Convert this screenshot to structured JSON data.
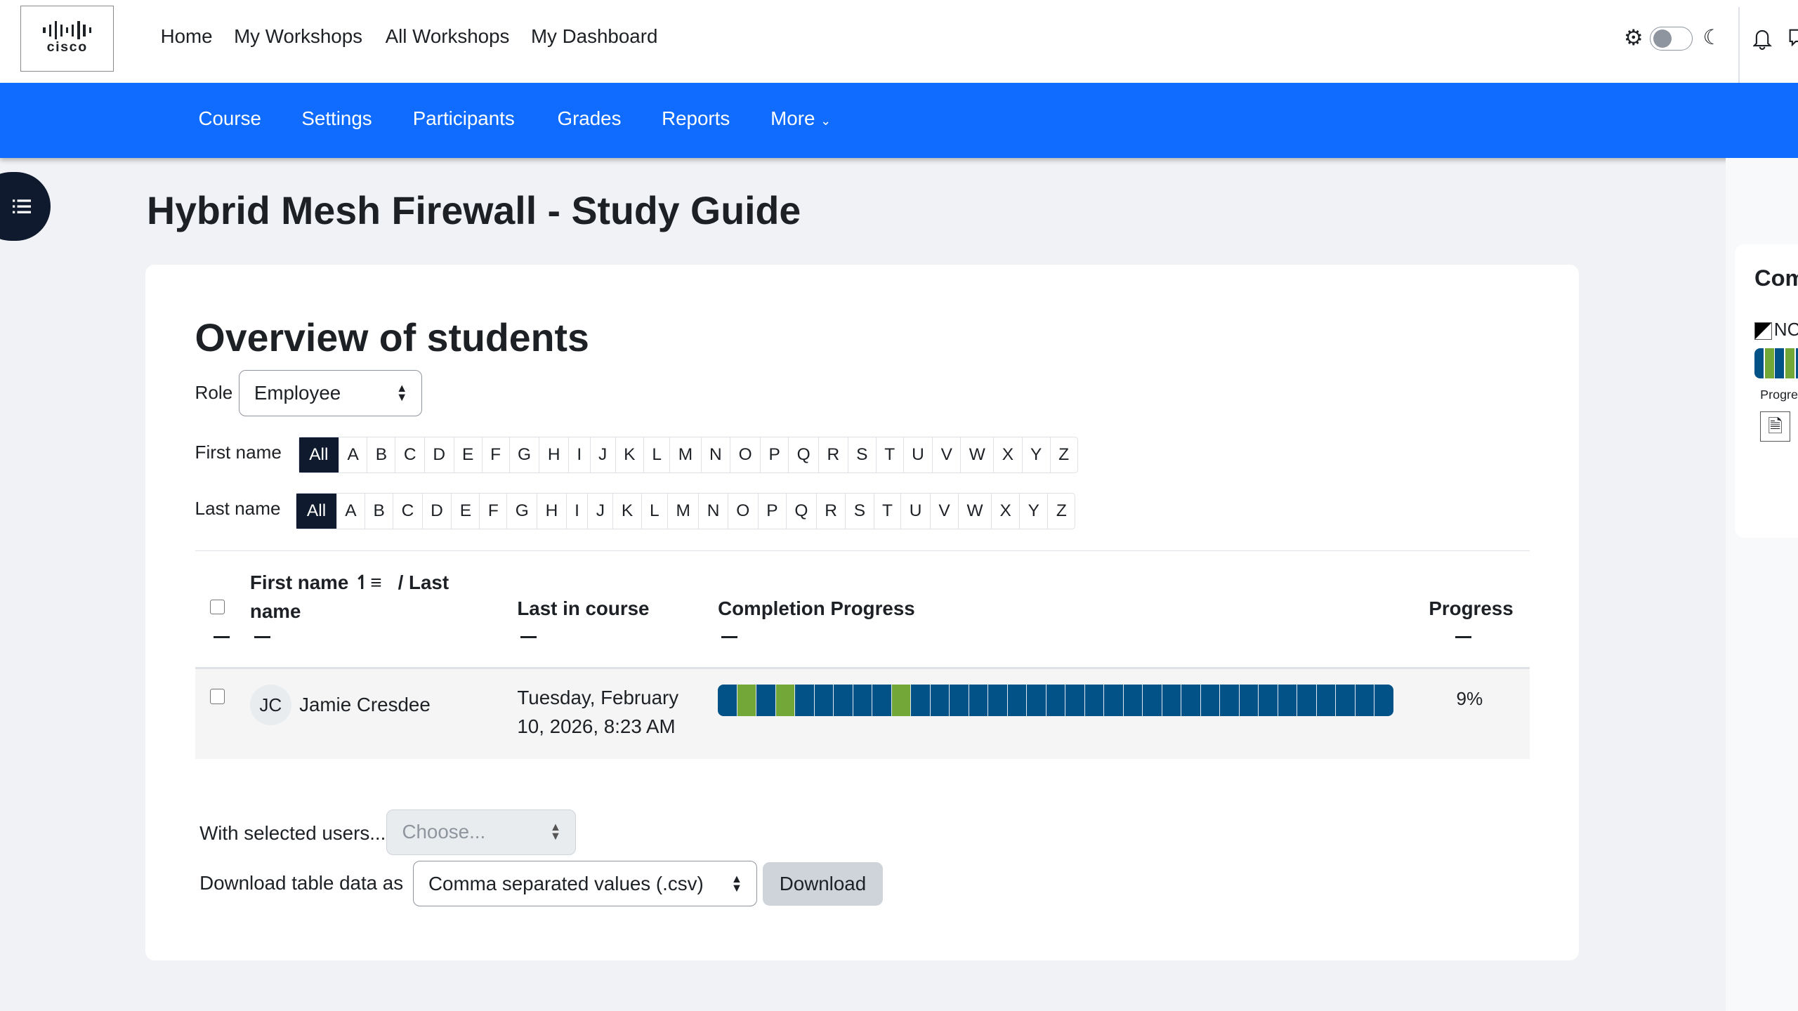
{
  "header": {
    "logo_text": "cisco",
    "nav": [
      "Home",
      "My Workshops",
      "All Workshops",
      "My Dashboard"
    ]
  },
  "course_nav": {
    "items": [
      "Course",
      "Settings",
      "Participants",
      "Grades",
      "Reports"
    ],
    "more": "More"
  },
  "page_title": "Hybrid Mesh Firewall - Study Guide",
  "overview": {
    "heading": "Overview of students",
    "role_label": "Role",
    "role_value": "Employee",
    "first_name_label": "First name",
    "last_name_label": "Last name",
    "letters": [
      "All",
      "A",
      "B",
      "C",
      "D",
      "E",
      "F",
      "G",
      "H",
      "I",
      "J",
      "K",
      "L",
      "M",
      "N",
      "O",
      "P",
      "Q",
      "R",
      "S",
      "T",
      "U",
      "V",
      "W",
      "X",
      "Y",
      "Z"
    ],
    "columns": {
      "name_first": "First name",
      "name_sep": "/ Last",
      "name_last": "name",
      "last_in_course": "Last in course",
      "completion": "Completion Progress",
      "progress": "Progress"
    },
    "rows": [
      {
        "initials": "JC",
        "name": "Jamie Cresdee",
        "last_in_course_1": "Tuesday, February",
        "last_in_course_2": "10, 2026, 8:23 AM",
        "progress": "9%",
        "segments": [
          0,
          1,
          0,
          1,
          0,
          0,
          0,
          0,
          0,
          1,
          0,
          0,
          0,
          0,
          0,
          0,
          0,
          0,
          0,
          0,
          0,
          0,
          0,
          0,
          0,
          0,
          0,
          0,
          0,
          0,
          0,
          0,
          0,
          0,
          0
        ]
      }
    ],
    "with_selected_label": "With selected users...",
    "with_selected_placeholder": "Choose...",
    "download_label": "Download table data as",
    "download_format": "Comma separated values (.csv)",
    "download_button": "Download"
  },
  "right_drawer": {
    "heading": "Com",
    "flag_text": "NC",
    "progress_text": "Progre",
    "mini_segments": [
      0,
      1,
      0,
      1,
      0
    ]
  },
  "colors": {
    "brand_blue": "#0f6cfe",
    "complete": "#73a839",
    "incomplete": "#025187",
    "dark": "#0f1a2e"
  }
}
